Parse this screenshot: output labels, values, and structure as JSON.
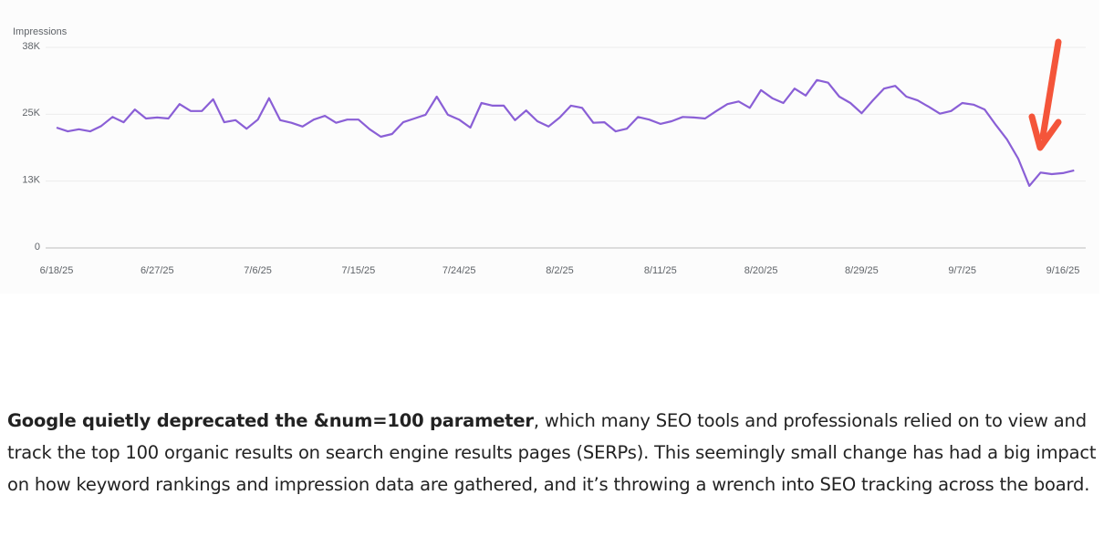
{
  "chart_data": {
    "type": "line",
    "y_label": "Impressions",
    "x": [
      "6/18/25",
      "6/19/25",
      "6/20/25",
      "6/21/25",
      "6/22/25",
      "6/23/25",
      "6/24/25",
      "6/25/25",
      "6/26/25",
      "6/27/25",
      "6/28/25",
      "6/29/25",
      "6/30/25",
      "7/1/25",
      "7/2/25",
      "7/3/25",
      "7/4/25",
      "7/5/25",
      "7/6/25",
      "7/7/25",
      "7/8/25",
      "7/9/25",
      "7/10/25",
      "7/11/25",
      "7/12/25",
      "7/13/25",
      "7/14/25",
      "7/15/25",
      "7/16/25",
      "7/17/25",
      "7/18/25",
      "7/19/25",
      "7/20/25",
      "7/21/25",
      "7/22/25",
      "7/23/25",
      "7/24/25",
      "7/25/25",
      "7/26/25",
      "7/27/25",
      "7/28/25",
      "7/29/25",
      "7/30/25",
      "7/31/25",
      "8/1/25",
      "8/2/25",
      "8/3/25",
      "8/4/25",
      "8/5/25",
      "8/6/25",
      "8/7/25",
      "8/8/25",
      "8/9/25",
      "8/10/25",
      "8/11/25",
      "8/12/25",
      "8/13/25",
      "8/14/25",
      "8/15/25",
      "8/16/25",
      "8/17/25",
      "8/18/25",
      "8/19/25",
      "8/20/25",
      "8/21/25",
      "8/22/25",
      "8/23/25",
      "8/24/25",
      "8/25/25",
      "8/26/25",
      "8/27/25",
      "8/28/25",
      "8/29/25",
      "8/30/25",
      "8/31/25",
      "9/1/25",
      "9/2/25",
      "9/3/25",
      "9/4/25",
      "9/5/25",
      "9/6/25",
      "9/7/25",
      "9/8/25",
      "9/9/25",
      "9/10/25",
      "9/11/25",
      "9/12/25",
      "9/13/25",
      "9/14/25",
      "9/15/25",
      "9/16/25",
      "9/17/25"
    ],
    "series": [
      {
        "name": "Impressions",
        "color": "#8a5fd6",
        "values": [
          22500,
          21800,
          22200,
          21800,
          22800,
          24500,
          23500,
          25900,
          24200,
          24400,
          24200,
          26900,
          25600,
          25600,
          27800,
          23500,
          23900,
          22300,
          24000,
          28000,
          23900,
          23400,
          22700,
          24000,
          24700,
          23400,
          24000,
          24000,
          22200,
          20800,
          21300,
          23500,
          24200,
          24900,
          28300,
          24900,
          24000,
          22500,
          27100,
          26600,
          26600,
          23900,
          25700,
          23700,
          22700,
          24400,
          26600,
          26200,
          23400,
          23500,
          21800,
          22300,
          24500,
          24000,
          23200,
          23700,
          24500,
          24400,
          24200,
          25600,
          26900,
          27400,
          26200,
          29500,
          28000,
          27100,
          29800,
          28500,
          31400,
          30900,
          28300,
          27100,
          25200,
          27600,
          29800,
          30300,
          28300,
          27600,
          26400,
          25100,
          25600,
          27100,
          26800,
          25900,
          23000,
          20300,
          16700,
          11600,
          14100,
          13800,
          14000,
          14500
        ]
      }
    ],
    "xticks": [
      "6/18/25",
      "6/27/25",
      "7/6/25",
      "7/15/25",
      "7/24/25",
      "8/2/25",
      "8/11/25",
      "8/20/25",
      "8/29/25",
      "9/7/25",
      "9/16/25"
    ],
    "ylim": [
      0,
      37500
    ],
    "yticks": [
      0,
      {
        "value": 12500,
        "label": "13K"
      },
      {
        "value": 25000,
        "label": "25K"
      },
      {
        "value": 37500,
        "label": "38K"
      }
    ],
    "grid": true
  },
  "article": {
    "bold": "Google quietly deprecated the &num=100 parameter",
    "text": ", which many SEO tools and professionals relied on to view and track the top 100 organic results on search engine results pages (SERPs). This seemingly small change has had a big impact on how keyword rankings and impression data are gathered, and it’s throwing a wrench into SEO tracking across the board."
  }
}
